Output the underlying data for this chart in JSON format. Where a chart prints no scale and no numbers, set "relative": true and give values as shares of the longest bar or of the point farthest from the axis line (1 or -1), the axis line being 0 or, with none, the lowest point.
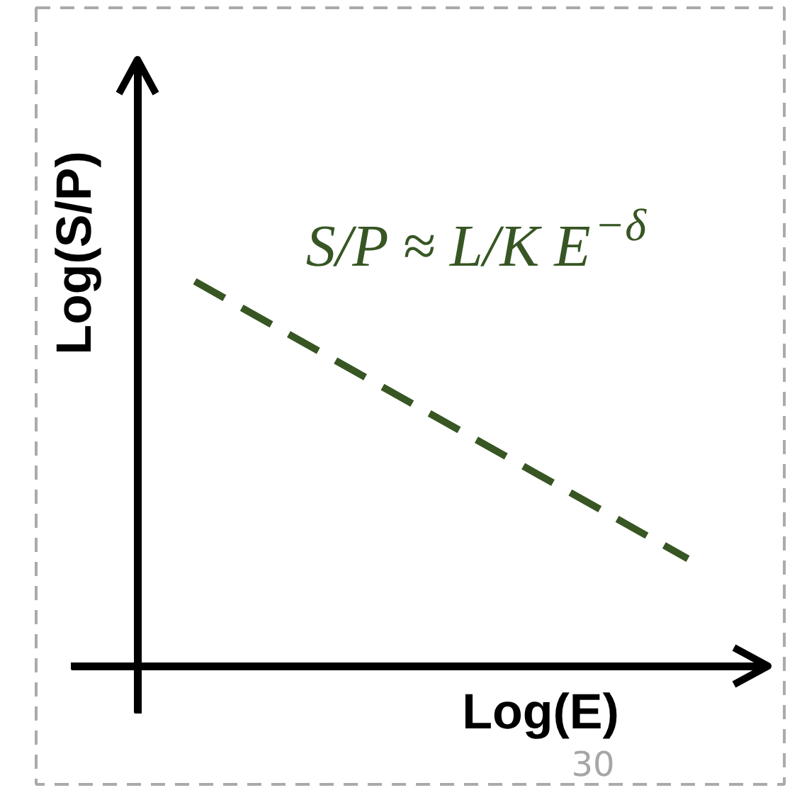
{
  "chart_data": {
    "type": "line",
    "relative": true,
    "categories": [
      null,
      null
    ],
    "series": [
      {
        "values": [
          1,
          0.28
        ],
        "color": "#375623"
      }
    ],
    "line_style": "dashed",
    "marker": "none",
    "xlabel": "Log(E)",
    "ylabel": "Log(S/P)",
    "annotations": [
      "S/P ≈ L/K E$^{−δ}$",
      "30"
    ]
  }
}
